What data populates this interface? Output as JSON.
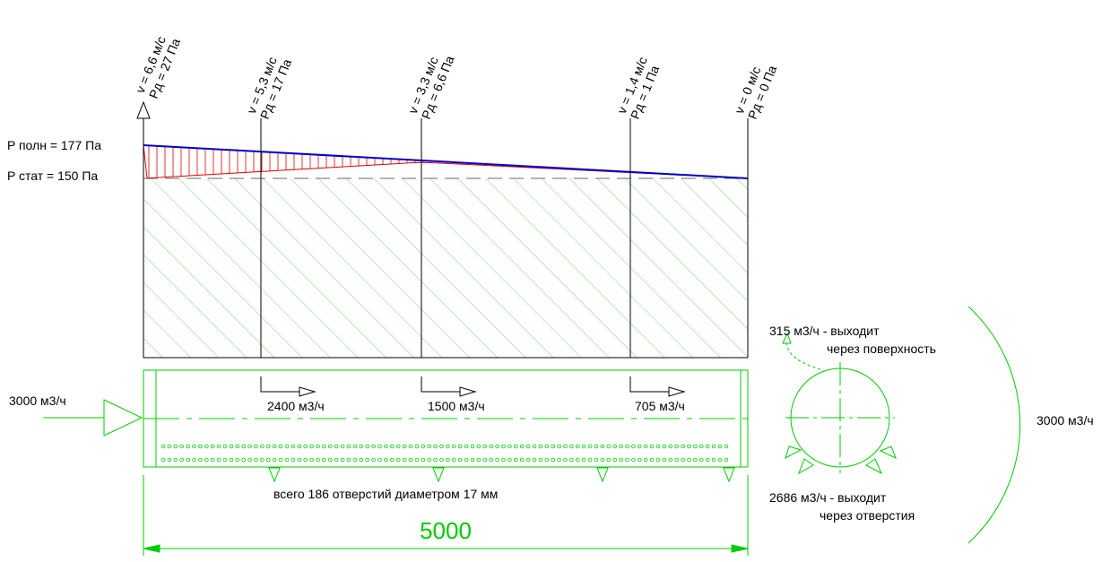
{
  "sections": [
    {
      "velocity": "v = 6,6 м/с",
      "dyn_pressure": "Pд = 27 Па"
    },
    {
      "velocity": "v = 5,3 м/с",
      "dyn_pressure": "Pд = 17 Па"
    },
    {
      "velocity": "v = 3,3 м/с",
      "dyn_pressure": "Pд = 6,6 Па"
    },
    {
      "velocity": "v = 1,4 м/с",
      "dyn_pressure": "Pд = 1 Па"
    },
    {
      "velocity": "v = 0 м/с",
      "dyn_pressure": "Pд = 0 Па"
    }
  ],
  "pressure": {
    "total_label": "P полн = 177 Па",
    "static_label": "P стат = 150 Па"
  },
  "duct": {
    "inlet_flow": "3000 м3/ч",
    "branch_flows": [
      "2400 м3/ч",
      "1500 м3/ч",
      "705 м3/ч"
    ],
    "holes_note": "всего 186 отверстий диаметром 17 мм",
    "length": "5000"
  },
  "cross_section": {
    "surface_flow_a": "315 м3/ч - выходит",
    "surface_flow_b": "через поверхность",
    "holes_flow_a": "2686 м3/ч - выходит",
    "holes_flow_b": "через отверстия",
    "total_flow": "3000 м3/ч"
  },
  "colors": {
    "green": "#00cc00",
    "red": "#e00000",
    "blue": "#0000cc",
    "hatch": "#7ad67a"
  }
}
